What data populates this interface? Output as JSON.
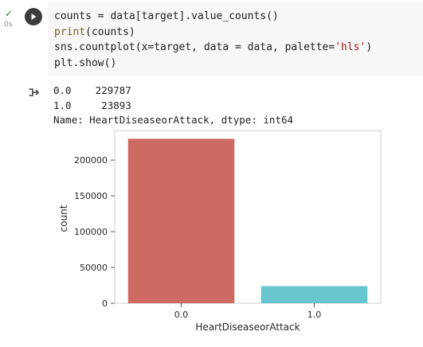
{
  "cell": {
    "status_check": "✓",
    "exec_time": "0s",
    "code_lines": [
      "counts = data[target].value_counts()",
      "print(counts)",
      "sns.countplot(x=target, data = data, palette='hls')",
      "plt.show()"
    ]
  },
  "output": {
    "lines": [
      "0.0    229787",
      "1.0     23893",
      "Name: HeartDiseaseorAttack, dtype: int64"
    ]
  },
  "chart_data": {
    "type": "bar",
    "categories": [
      "0.0",
      "1.0"
    ],
    "values": [
      229787,
      23893
    ],
    "colors": [
      "#cd6a62",
      "#66c5cf"
    ],
    "xlabel": "HeartDiseaseorAttack",
    "ylabel": "count",
    "yticks": [
      0,
      50000,
      100000,
      150000,
      200000
    ],
    "ylim": [
      0,
      241276
    ],
    "grid": false,
    "legend": "none"
  }
}
